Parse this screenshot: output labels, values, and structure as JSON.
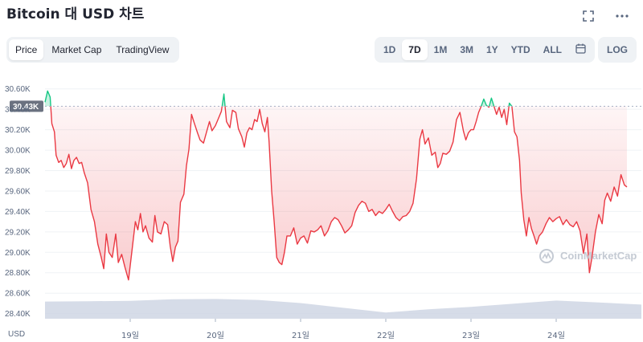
{
  "header": {
    "title": "Bitcoin 대 USD 차트"
  },
  "icons": {
    "fullscreen": "fullscreen-icon",
    "more": "more-dots-icon",
    "calendar": "calendar-icon",
    "watermark": "coinmarketcap-logo"
  },
  "tabs": [
    {
      "label": "Price",
      "active": true
    },
    {
      "label": "Market Cap",
      "active": false
    },
    {
      "label": "TradingView",
      "active": false
    }
  ],
  "ranges": [
    {
      "label": "1D",
      "active": false
    },
    {
      "label": "7D",
      "active": true
    },
    {
      "label": "1M",
      "active": false
    },
    {
      "label": "3M",
      "active": false
    },
    {
      "label": "1Y",
      "active": false
    },
    {
      "label": "YTD",
      "active": false
    },
    {
      "label": "ALL",
      "active": false
    }
  ],
  "log_label": "LOG",
  "watermark": "CoinMarketCap",
  "chart_data": {
    "type": "line",
    "title": "Bitcoin 대 USD 차트",
    "currency_label": "USD",
    "y_ticks": [
      "30.60K",
      "30.40K",
      "30.20K",
      "30.00K",
      "29.80K",
      "29.60K",
      "29.40K",
      "29.20K",
      "29.00K",
      "28.80K",
      "28.60K",
      "28.40K"
    ],
    "x_ticks": [
      "19일",
      "20일",
      "21일",
      "22일",
      "23일",
      "24일"
    ],
    "ylim": [
      28350,
      30700
    ],
    "x_range": [
      0,
      7
    ],
    "x_tick_positions": [
      1,
      2,
      3,
      4,
      5,
      6
    ],
    "reference_price": 30430,
    "reference_label": "30.43K",
    "colors": {
      "up": "#16c784",
      "down": "#ea3943",
      "volume": "#cfd6e4",
      "grid": "#eff2f5"
    },
    "series": [
      {
        "values": [
          [
            0.0,
            30470
          ],
          [
            0.03,
            30580
          ],
          [
            0.06,
            30520
          ],
          [
            0.08,
            30260
          ],
          [
            0.11,
            30180
          ],
          [
            0.13,
            29950
          ],
          [
            0.16,
            29880
          ],
          [
            0.19,
            29900
          ],
          [
            0.22,
            29830
          ],
          [
            0.25,
            29870
          ],
          [
            0.28,
            29960
          ],
          [
            0.31,
            29820
          ],
          [
            0.34,
            29900
          ],
          [
            0.37,
            29930
          ],
          [
            0.4,
            29870
          ],
          [
            0.43,
            29880
          ],
          [
            0.46,
            29780
          ],
          [
            0.5,
            29680
          ],
          [
            0.54,
            29420
          ],
          [
            0.58,
            29300
          ],
          [
            0.62,
            29080
          ],
          [
            0.66,
            28950
          ],
          [
            0.69,
            28840
          ],
          [
            0.72,
            29180
          ],
          [
            0.75,
            29000
          ],
          [
            0.79,
            28950
          ],
          [
            0.83,
            29180
          ],
          [
            0.86,
            28900
          ],
          [
            0.9,
            28980
          ],
          [
            0.94,
            28850
          ],
          [
            0.98,
            28730
          ],
          [
            1.02,
            29010
          ],
          [
            1.06,
            29300
          ],
          [
            1.09,
            29220
          ],
          [
            1.12,
            29380
          ],
          [
            1.15,
            29200
          ],
          [
            1.18,
            29260
          ],
          [
            1.22,
            29140
          ],
          [
            1.26,
            29100
          ],
          [
            1.29,
            29360
          ],
          [
            1.32,
            29200
          ],
          [
            1.36,
            29180
          ],
          [
            1.4,
            29300
          ],
          [
            1.44,
            29270
          ],
          [
            1.47,
            29060
          ],
          [
            1.5,
            28910
          ],
          [
            1.53,
            29050
          ],
          [
            1.56,
            29110
          ],
          [
            1.59,
            29490
          ],
          [
            1.63,
            29570
          ],
          [
            1.66,
            29850
          ],
          [
            1.69,
            30010
          ],
          [
            1.72,
            30350
          ],
          [
            1.75,
            30270
          ],
          [
            1.79,
            30170
          ],
          [
            1.82,
            30100
          ],
          [
            1.86,
            30070
          ],
          [
            1.9,
            30190
          ],
          [
            1.93,
            30280
          ],
          [
            1.96,
            30190
          ],
          [
            2.0,
            30240
          ],
          [
            2.03,
            30300
          ],
          [
            2.07,
            30380
          ],
          [
            2.1,
            30550
          ],
          [
            2.13,
            30280
          ],
          [
            2.17,
            30220
          ],
          [
            2.2,
            30390
          ],
          [
            2.24,
            30370
          ],
          [
            2.27,
            30210
          ],
          [
            2.31,
            30130
          ],
          [
            2.34,
            30030
          ],
          [
            2.37,
            30170
          ],
          [
            2.4,
            30220
          ],
          [
            2.43,
            30200
          ],
          [
            2.46,
            30300
          ],
          [
            2.49,
            30280
          ],
          [
            2.52,
            30400
          ],
          [
            2.55,
            30260
          ],
          [
            2.58,
            30180
          ],
          [
            2.61,
            30320
          ],
          [
            2.63,
            30080
          ],
          [
            2.66,
            29600
          ],
          [
            2.69,
            29300
          ],
          [
            2.72,
            28950
          ],
          [
            2.75,
            28900
          ],
          [
            2.78,
            28880
          ],
          [
            2.81,
            29000
          ],
          [
            2.84,
            29160
          ],
          [
            2.88,
            29160
          ],
          [
            2.92,
            29240
          ],
          [
            2.96,
            29080
          ],
          [
            3.0,
            29140
          ],
          [
            3.04,
            29160
          ],
          [
            3.08,
            29090
          ],
          [
            3.12,
            29210
          ],
          [
            3.16,
            29200
          ],
          [
            3.2,
            29220
          ],
          [
            3.24,
            29260
          ],
          [
            3.28,
            29160
          ],
          [
            3.32,
            29210
          ],
          [
            3.36,
            29300
          ],
          [
            3.4,
            29340
          ],
          [
            3.44,
            29320
          ],
          [
            3.48,
            29260
          ],
          [
            3.52,
            29190
          ],
          [
            3.56,
            29220
          ],
          [
            3.6,
            29260
          ],
          [
            3.64,
            29390
          ],
          [
            3.68,
            29460
          ],
          [
            3.72,
            29500
          ],
          [
            3.76,
            29480
          ],
          [
            3.8,
            29400
          ],
          [
            3.84,
            29420
          ],
          [
            3.88,
            29360
          ],
          [
            3.92,
            29400
          ],
          [
            3.96,
            29380
          ],
          [
            4.0,
            29420
          ],
          [
            4.04,
            29470
          ],
          [
            4.08,
            29400
          ],
          [
            4.12,
            29340
          ],
          [
            4.16,
            29310
          ],
          [
            4.2,
            29350
          ],
          [
            4.24,
            29360
          ],
          [
            4.28,
            29400
          ],
          [
            4.32,
            29480
          ],
          [
            4.36,
            29720
          ],
          [
            4.4,
            30110
          ],
          [
            4.43,
            30200
          ],
          [
            4.46,
            30060
          ],
          [
            4.5,
            30120
          ],
          [
            4.54,
            29950
          ],
          [
            4.58,
            29980
          ],
          [
            4.61,
            29830
          ],
          [
            4.64,
            29870
          ],
          [
            4.67,
            29970
          ],
          [
            4.71,
            29960
          ],
          [
            4.75,
            29990
          ],
          [
            4.79,
            30080
          ],
          [
            4.83,
            30300
          ],
          [
            4.87,
            30370
          ],
          [
            4.91,
            30190
          ],
          [
            4.94,
            30100
          ],
          [
            4.97,
            30170
          ],
          [
            5.0,
            30200
          ],
          [
            5.03,
            30200
          ],
          [
            5.06,
            30280
          ],
          [
            5.09,
            30370
          ],
          [
            5.12,
            30430
          ],
          [
            5.15,
            30500
          ],
          [
            5.18,
            30440
          ],
          [
            5.21,
            30420
          ],
          [
            5.24,
            30510
          ],
          [
            5.27,
            30430
          ],
          [
            5.3,
            30350
          ],
          [
            5.33,
            30420
          ],
          [
            5.36,
            30320
          ],
          [
            5.39,
            30400
          ],
          [
            5.42,
            30250
          ],
          [
            5.45,
            30460
          ],
          [
            5.48,
            30430
          ],
          [
            5.51,
            30180
          ],
          [
            5.54,
            30130
          ],
          [
            5.57,
            29900
          ],
          [
            5.59,
            29580
          ],
          [
            5.62,
            29320
          ],
          [
            5.65,
            29160
          ],
          [
            5.68,
            29340
          ],
          [
            5.71,
            29230
          ],
          [
            5.74,
            29160
          ],
          [
            5.77,
            29080
          ],
          [
            5.8,
            29160
          ],
          [
            5.84,
            29200
          ],
          [
            5.88,
            29280
          ],
          [
            5.92,
            29340
          ],
          [
            5.96,
            29300
          ],
          [
            6.0,
            29330
          ],
          [
            6.04,
            29350
          ],
          [
            6.08,
            29270
          ],
          [
            6.12,
            29320
          ],
          [
            6.16,
            29270
          ],
          [
            6.2,
            29250
          ],
          [
            6.24,
            29300
          ],
          [
            6.28,
            29210
          ],
          [
            6.32,
            28990
          ],
          [
            6.36,
            29180
          ],
          [
            6.39,
            28800
          ],
          [
            6.42,
            28950
          ],
          [
            6.46,
            29200
          ],
          [
            6.5,
            29370
          ],
          [
            6.54,
            29280
          ],
          [
            6.57,
            29510
          ],
          [
            6.6,
            29580
          ],
          [
            6.64,
            29500
          ],
          [
            6.68,
            29640
          ],
          [
            6.72,
            29550
          ],
          [
            6.76,
            29760
          ],
          [
            6.8,
            29660
          ],
          [
            6.83,
            29640
          ]
        ]
      }
    ],
    "volume": [
      [
        0.0,
        0.55
      ],
      [
        0.5,
        0.56
      ],
      [
        1.0,
        0.57
      ],
      [
        1.5,
        0.62
      ],
      [
        2.0,
        0.63
      ],
      [
        2.5,
        0.6
      ],
      [
        3.0,
        0.5
      ],
      [
        3.5,
        0.35
      ],
      [
        4.0,
        0.2
      ],
      [
        4.5,
        0.3
      ],
      [
        5.0,
        0.38
      ],
      [
        5.5,
        0.48
      ],
      [
        6.0,
        0.58
      ],
      [
        6.5,
        0.52
      ],
      [
        7.0,
        0.45
      ]
    ]
  }
}
